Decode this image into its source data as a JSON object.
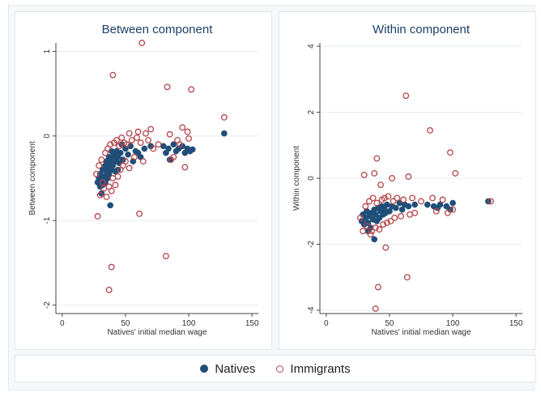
{
  "chart_data": [
    {
      "type": "scatter",
      "title": "Between component",
      "xlabel": "Natives' initial median wage",
      "ylabel": "Between component",
      "xlim": [
        -5,
        155
      ],
      "ylim": [
        -2.1,
        1.1
      ],
      "xticks": [
        0,
        50,
        100,
        150
      ],
      "xtick_labels": [
        "0",
        "50",
        "100",
        "150"
      ],
      "yticks": [
        1,
        0,
        -1,
        -2
      ],
      "ytick_labels": [
        "1",
        "0",
        "-1",
        "-2"
      ],
      "ytick_rotation": "vertical",
      "grid": true,
      "series": [
        {
          "name": "Natives",
          "marker": "filled-circle",
          "color": "#1f4e79",
          "points": [
            [
              28,
              -0.55
            ],
            [
              29,
              -0.5
            ],
            [
              30,
              -0.6
            ],
            [
              30,
              -0.45
            ],
            [
              31,
              -0.52
            ],
            [
              32,
              -0.4
            ],
            [
              32,
              -0.58
            ],
            [
              33,
              -0.48
            ],
            [
              34,
              -0.35
            ],
            [
              34,
              -0.55
            ],
            [
              35,
              -0.42
            ],
            [
              35,
              -0.3
            ],
            [
              36,
              -0.5
            ],
            [
              36,
              -0.38
            ],
            [
              37,
              -0.25
            ],
            [
              37,
              -0.45
            ],
            [
              38,
              -0.82
            ],
            [
              38,
              -0.32
            ],
            [
              39,
              -0.4
            ],
            [
              40,
              -0.28
            ],
            [
              40,
              -0.35
            ],
            [
              41,
              -0.22
            ],
            [
              42,
              -0.3
            ],
            [
              42,
              -0.42
            ],
            [
              43,
              -0.18
            ],
            [
              44,
              -0.25
            ],
            [
              45,
              -0.32
            ],
            [
              46,
              -0.2
            ],
            [
              47,
              -0.1
            ],
            [
              48,
              -0.28
            ],
            [
              50,
              -0.15
            ],
            [
              52,
              -0.22
            ],
            [
              54,
              -0.12
            ],
            [
              56,
              -0.3
            ],
            [
              58,
              -0.18
            ],
            [
              60,
              -0.2
            ],
            [
              62,
              -0.25
            ],
            [
              65,
              -0.15
            ],
            [
              70,
              -0.12
            ],
            [
              80,
              -0.12
            ],
            [
              82,
              -0.2
            ],
            [
              84,
              -0.15
            ],
            [
              85,
              -0.28
            ],
            [
              88,
              -0.1
            ],
            [
              90,
              -0.18
            ],
            [
              92,
              -0.15
            ],
            [
              95,
              -0.12
            ],
            [
              97,
              -0.2
            ],
            [
              99,
              -0.15
            ],
            [
              101,
              -0.18
            ],
            [
              103,
              -0.16
            ],
            [
              128,
              0.03
            ],
            [
              31,
              -0.68
            ],
            [
              44,
              -0.4
            ],
            [
              39,
              -0.18
            ]
          ]
        },
        {
          "name": "Immigrants",
          "marker": "hollow-circle",
          "color": "#b5464b",
          "points": [
            [
              63,
              1.1
            ],
            [
              40,
              0.72
            ],
            [
              83,
              0.58
            ],
            [
              102,
              0.55
            ],
            [
              128,
              0.22
            ],
            [
              53,
              0.03
            ],
            [
              60,
              0.05
            ],
            [
              66,
              0.03
            ],
            [
              70,
              0.08
            ],
            [
              85,
              0.02
            ],
            [
              95,
              0.1
            ],
            [
              99,
              0.05
            ],
            [
              100,
              -0.03
            ],
            [
              93,
              -0.1
            ],
            [
              86,
              -0.28
            ],
            [
              97,
              -0.37
            ],
            [
              28,
              -0.95
            ],
            [
              61,
              -0.92
            ],
            [
              82,
              -1.42
            ],
            [
              39,
              -1.55
            ],
            [
              37,
              -1.82
            ],
            [
              27,
              -0.45
            ],
            [
              29,
              -0.35
            ],
            [
              30,
              -0.7
            ],
            [
              31,
              -0.28
            ],
            [
              32,
              -0.55
            ],
            [
              33,
              -0.62
            ],
            [
              34,
              -0.2
            ],
            [
              35,
              -0.72
            ],
            [
              36,
              -0.15
            ],
            [
              37,
              -0.6
            ],
            [
              38,
              -0.1
            ],
            [
              39,
              -0.65
            ],
            [
              40,
              -0.5
            ],
            [
              41,
              -0.08
            ],
            [
              42,
              -0.58
            ],
            [
              43,
              -0.05
            ],
            [
              44,
              -0.48
            ],
            [
              45,
              -0.12
            ],
            [
              46,
              -0.4
            ],
            [
              47,
              -0.02
            ],
            [
              48,
              -0.35
            ],
            [
              49,
              -0.08
            ],
            [
              50,
              -0.3
            ],
            [
              51,
              -0.1
            ],
            [
              53,
              -0.38
            ],
            [
              55,
              -0.05
            ],
            [
              57,
              -0.25
            ],
            [
              59,
              -0.02
            ],
            [
              62,
              -0.08
            ],
            [
              64,
              -0.3
            ],
            [
              68,
              -0.05
            ],
            [
              72,
              -0.15
            ],
            [
              76,
              -0.1
            ],
            [
              88,
              -0.25
            ],
            [
              91,
              -0.05
            ]
          ]
        }
      ]
    },
    {
      "type": "scatter",
      "title": "Within component",
      "xlabel": "Natives' initial median wage",
      "ylabel": "Within component",
      "xlim": [
        -5,
        155
      ],
      "ylim": [
        -4.1,
        4.1
      ],
      "xticks": [
        0,
        50,
        100,
        150
      ],
      "xtick_labels": [
        "0",
        "50",
        "100",
        "150"
      ],
      "yticks": [
        4,
        2,
        0,
        -2,
        -4
      ],
      "ytick_labels": [
        "4",
        "2",
        "0",
        "-2",
        "-4"
      ],
      "ytick_rotation": "vertical",
      "grid": true,
      "series": [
        {
          "name": "Natives",
          "marker": "filled-circle",
          "color": "#1f4e79",
          "points": [
            [
              28,
              -1.3
            ],
            [
              29,
              -1.1
            ],
            [
              30,
              -1.4
            ],
            [
              31,
              -1.2
            ],
            [
              32,
              -1.0
            ],
            [
              33,
              -1.35
            ],
            [
              34,
              -1.15
            ],
            [
              35,
              -1.5
            ],
            [
              36,
              -1.05
            ],
            [
              37,
              -1.25
            ],
            [
              38,
              -1.85
            ],
            [
              38,
              -0.95
            ],
            [
              39,
              -1.1
            ],
            [
              40,
              -1.3
            ],
            [
              41,
              -0.9
            ],
            [
              42,
              -1.2
            ],
            [
              43,
              -1.0
            ],
            [
              44,
              -0.85
            ],
            [
              45,
              -1.1
            ],
            [
              46,
              -0.95
            ],
            [
              48,
              -0.8
            ],
            [
              50,
              -1.0
            ],
            [
              52,
              -0.85
            ],
            [
              55,
              -0.9
            ],
            [
              58,
              -0.75
            ],
            [
              60,
              -0.95
            ],
            [
              62,
              -0.8
            ],
            [
              65,
              -0.85
            ],
            [
              70,
              -0.8
            ],
            [
              80,
              -0.8
            ],
            [
              85,
              -0.85
            ],
            [
              88,
              -0.9
            ],
            [
              90,
              -0.8
            ],
            [
              95,
              -0.85
            ],
            [
              98,
              -0.95
            ],
            [
              100,
              -0.75
            ],
            [
              128,
              -0.7
            ],
            [
              33,
              -1.6
            ],
            [
              47,
              -1.05
            ]
          ]
        },
        {
          "name": "Immigrants",
          "marker": "hollow-circle",
          "color": "#b5464b",
          "points": [
            [
              63,
              2.5
            ],
            [
              82,
              1.45
            ],
            [
              98,
              0.78
            ],
            [
              102,
              0.15
            ],
            [
              40,
              0.6
            ],
            [
              38,
              0.15
            ],
            [
              30,
              0.1
            ],
            [
              52,
              0.0
            ],
            [
              65,
              0.05
            ],
            [
              43,
              -0.2
            ],
            [
              41,
              -3.3
            ],
            [
              39,
              -3.95
            ],
            [
              64,
              -3.0
            ],
            [
              47,
              -2.1
            ],
            [
              36,
              -1.6
            ],
            [
              29,
              -1.6
            ],
            [
              27,
              -1.2
            ],
            [
              31,
              -0.85
            ],
            [
              32,
              -1.45
            ],
            [
              34,
              -0.7
            ],
            [
              35,
              -1.7
            ],
            [
              37,
              -0.6
            ],
            [
              39,
              -1.5
            ],
            [
              40,
              -0.75
            ],
            [
              42,
              -1.55
            ],
            [
              44,
              -0.65
            ],
            [
              45,
              -1.4
            ],
            [
              46,
              -0.6
            ],
            [
              48,
              -1.35
            ],
            [
              49,
              -0.55
            ],
            [
              51,
              -1.3
            ],
            [
              53,
              -0.7
            ],
            [
              54,
              -1.2
            ],
            [
              56,
              -0.6
            ],
            [
              59,
              -1.15
            ],
            [
              61,
              -0.65
            ],
            [
              66,
              -1.1
            ],
            [
              68,
              -0.6
            ],
            [
              70,
              -1.05
            ],
            [
              75,
              -0.7
            ],
            [
              84,
              -0.6
            ],
            [
              87,
              -1.0
            ],
            [
              92,
              -0.65
            ],
            [
              96,
              -1.05
            ],
            [
              100,
              -0.95
            ],
            [
              130,
              -0.7
            ]
          ]
        }
      ]
    }
  ],
  "legend": {
    "items": [
      {
        "label": "Natives",
        "color": "#1f4e79",
        "marker": "filled-circle"
      },
      {
        "label": "Immigrants",
        "color": "#b5464b",
        "marker": "hollow-circle"
      }
    ],
    "placement": "bottom"
  }
}
